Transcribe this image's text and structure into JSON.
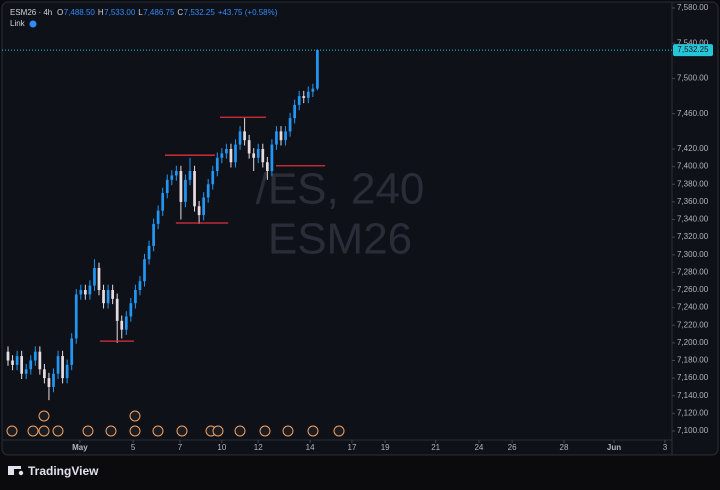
{
  "header": {
    "symbol": "ESM26 · 4h",
    "ohlc": [
      {
        "key": "O",
        "value": "7,488.50"
      },
      {
        "key": "H",
        "value": "7,533.00"
      },
      {
        "key": "L",
        "value": "7,486.75"
      },
      {
        "key": "C",
        "value": "7,532.25"
      }
    ],
    "change": "+43.75 (+0.58%)",
    "link": "Link"
  },
  "watermark": [
    "/ES, 240",
    "ESM26"
  ],
  "brand": "TradingView",
  "chart_data": {
    "type": "candlestick",
    "open": [
      7190,
      7180,
      7175,
      7185,
      7165,
      7170,
      7180,
      7190,
      7170,
      7160,
      7150,
      7165,
      7185,
      7160,
      7175,
      7205,
      7255,
      7260,
      7255,
      7265,
      7285,
      7260,
      7245,
      7260,
      7250,
      7225,
      7215,
      7230,
      7245,
      7260,
      7270,
      7295,
      7310,
      7335,
      7350,
      7370,
      7385,
      7390,
      7395,
      7360,
      7385,
      7395,
      7355,
      7345,
      7365,
      7380,
      7395,
      7410,
      7415,
      7420,
      7405,
      7425,
      7440,
      7430,
      7415,
      7410,
      7420,
      7405,
      7395,
      7425,
      7440,
      7430,
      7440,
      7455,
      7470,
      7480,
      7478,
      7485,
      7488.5
    ],
    "high": [
      7196,
      7186,
      7191,
      7191,
      7176,
      7186,
      7196,
      7196,
      7176,
      7166,
      7171,
      7191,
      7191,
      7181,
      7211,
      7261,
      7266,
      7266,
      7271,
      7295,
      7291,
      7266,
      7266,
      7266,
      7256,
      7231,
      7236,
      7251,
      7266,
      7276,
      7301,
      7316,
      7341,
      7356,
      7376,
      7391,
      7396,
      7401,
      7401,
      7391,
      7410,
      7401,
      7361,
      7371,
      7386,
      7401,
      7416,
      7421,
      7426,
      7426,
      7431,
      7446,
      7455,
      7436,
      7421,
      7426,
      7426,
      7411,
      7431,
      7446,
      7446,
      7446,
      7461,
      7476,
      7486,
      7486,
      7491,
      7494,
      7533
    ],
    "low": [
      7174,
      7169,
      7169,
      7159,
      7159,
      7164,
      7174,
      7164,
      7154,
      7135,
      7144,
      7159,
      7154,
      7154,
      7169,
      7199,
      7249,
      7249,
      7249,
      7259,
      7254,
      7239,
      7239,
      7244,
      7200,
      7205,
      7209,
      7224,
      7239,
      7254,
      7264,
      7289,
      7304,
      7329,
      7344,
      7364,
      7379,
      7384,
      7340,
      7354,
      7379,
      7349,
      7335,
      7339,
      7359,
      7374,
      7389,
      7404,
      7409,
      7399,
      7399,
      7419,
      7424,
      7409,
      7395,
      7404,
      7399,
      7385,
      7389,
      7419,
      7424,
      7424,
      7434,
      7449,
      7464,
      7472,
      7472,
      7479,
      7486.75
    ],
    "close": [
      7180,
      7175,
      7185,
      7165,
      7170,
      7180,
      7190,
      7170,
      7160,
      7150,
      7165,
      7185,
      7160,
      7175,
      7205,
      7255,
      7260,
      7255,
      7265,
      7285,
      7260,
      7245,
      7260,
      7250,
      7225,
      7215,
      7230,
      7245,
      7260,
      7270,
      7295,
      7310,
      7335,
      7350,
      7370,
      7385,
      7390,
      7395,
      7360,
      7385,
      7395,
      7355,
      7345,
      7365,
      7380,
      7395,
      7410,
      7415,
      7420,
      7405,
      7425,
      7440,
      7430,
      7415,
      7410,
      7420,
      7405,
      7395,
      7425,
      7440,
      7430,
      7440,
      7455,
      7470,
      7480,
      7478,
      7485,
      7488.5,
      7532.25
    ],
    "up_color": "#2196f3",
    "down_color": "#e6dce0",
    "ylim": [
      7100,
      7580
    ],
    "yticks": [
      {
        "value": 7100,
        "label": "7,100.00"
      },
      {
        "value": 7120,
        "label": "7,120.00"
      },
      {
        "value": 7140,
        "label": "7,140.00"
      },
      {
        "value": 7160,
        "label": "7,160.00"
      },
      {
        "value": 7180,
        "label": "7,180.00"
      },
      {
        "value": 7200,
        "label": "7,200.00"
      },
      {
        "value": 7220,
        "label": "7,220.00"
      },
      {
        "value": 7240,
        "label": "7,240.00"
      },
      {
        "value": 7260,
        "label": "7,260.00"
      },
      {
        "value": 7280,
        "label": "7,280.00"
      },
      {
        "value": 7300,
        "label": "7,300.00"
      },
      {
        "value": 7320,
        "label": "7,320.00"
      },
      {
        "value": 7340,
        "label": "7,340.00"
      },
      {
        "value": 7360,
        "label": "7,360.00"
      },
      {
        "value": 7380,
        "label": "7,380.00"
      },
      {
        "value": 7400,
        "label": "7,400.00"
      },
      {
        "value": 7420,
        "label": "7,420.00"
      },
      {
        "value": 7460,
        "label": "7,460.00"
      },
      {
        "value": 7500,
        "label": "7,500.00"
      },
      {
        "value": 7540,
        "label": "7,540.00"
      },
      {
        "value": 7580,
        "label": "7,580.00"
      }
    ],
    "xlim": [
      0,
      144.4
    ],
    "xticks": [
      {
        "value": 15.8,
        "label": "May"
      },
      {
        "value": 27.5,
        "label": "5"
      },
      {
        "value": 37.8,
        "label": "7"
      },
      {
        "value": 47,
        "label": "10"
      },
      {
        "value": 55,
        "label": "12"
      },
      {
        "value": 66.4,
        "label": "14"
      },
      {
        "value": 75.6,
        "label": "17"
      },
      {
        "value": 82.9,
        "label": "19"
      },
      {
        "value": 94,
        "label": "21"
      },
      {
        "value": 103.5,
        "label": "24"
      },
      {
        "value": 110.8,
        "label": "26"
      },
      {
        "value": 122.2,
        "label": "28"
      },
      {
        "value": 133.2,
        "label": "Jun"
      },
      {
        "value": 144.4,
        "label": "3"
      }
    ],
    "last_price": {
      "value": 7532.25,
      "label": "7,532.25"
    },
    "levels": [
      {
        "value": 7202,
        "x": [
          20.2,
          27.7
        ]
      },
      {
        "value": 7413,
        "x": [
          34.5,
          45.5
        ]
      },
      {
        "value": 7336,
        "x": [
          36.9,
          48.4
        ]
      },
      {
        "value": 7456,
        "x": [
          46.6,
          56.7
        ]
      },
      {
        "value": 7401,
        "x": [
          58.9,
          69.7
        ]
      }
    ],
    "level_color": "#e0303a"
  }
}
